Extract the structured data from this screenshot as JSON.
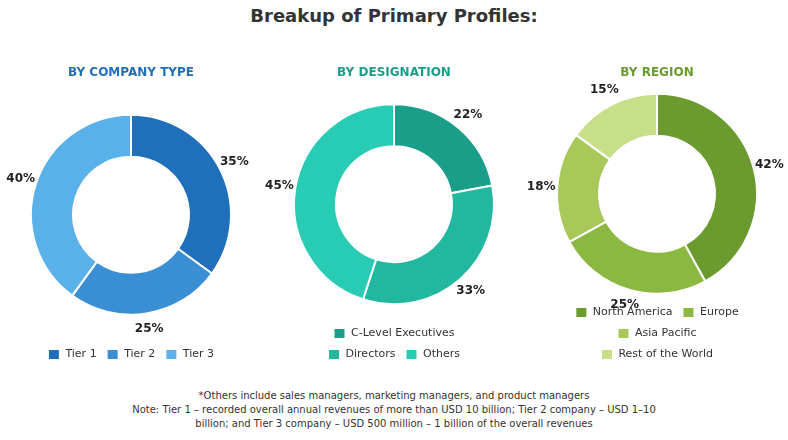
{
  "title": "Breakup of Primary Profiles:",
  "chart_data": [
    {
      "type": "doughnut",
      "title": "BY COMPANY TYPE",
      "categories": [
        "Tier 1",
        "Tier 2",
        "Tier 3"
      ],
      "values": [
        35,
        25,
        40
      ],
      "value_labels": [
        "35%",
        "25%",
        "40%"
      ],
      "colors": [
        "#1f6fba",
        "#3a8fd4",
        "#5ab0e8"
      ],
      "data_labels": true,
      "legend": "bottom"
    },
    {
      "type": "doughnut",
      "title": "BY DESIGNATION",
      "categories": [
        "C-Level Executives",
        "Directors",
        "Others"
      ],
      "values": [
        22,
        33,
        45
      ],
      "value_labels": [
        "22%",
        "33%",
        "45%"
      ],
      "colors": [
        "#1a9e8a",
        "#22b89f",
        "#28cbb3"
      ],
      "data_labels": true,
      "legend": "bottom"
    },
    {
      "type": "doughnut",
      "title": "BY REGION",
      "categories": [
        "North America",
        "Europe",
        "Asia Pacific",
        "Rest of the World"
      ],
      "values": [
        42,
        25,
        18,
        15
      ],
      "value_labels": [
        "42%",
        "25%",
        "18%",
        "15%"
      ],
      "colors": [
        "#6b9a2e",
        "#8ab840",
        "#a8c85a",
        "#c8df8a"
      ],
      "data_labels": true,
      "legend": "bottom"
    }
  ],
  "annotations": [
    "*Others include sales managers, marketing managers, and product managers",
    "Note: Tier 1 – recorded overall annual revenues of more than USD 10 billion; Tier 2 company – USD 1–10",
    "billion; and Tier 3 company – USD 500 million – 1 billion of the overall revenues"
  ]
}
